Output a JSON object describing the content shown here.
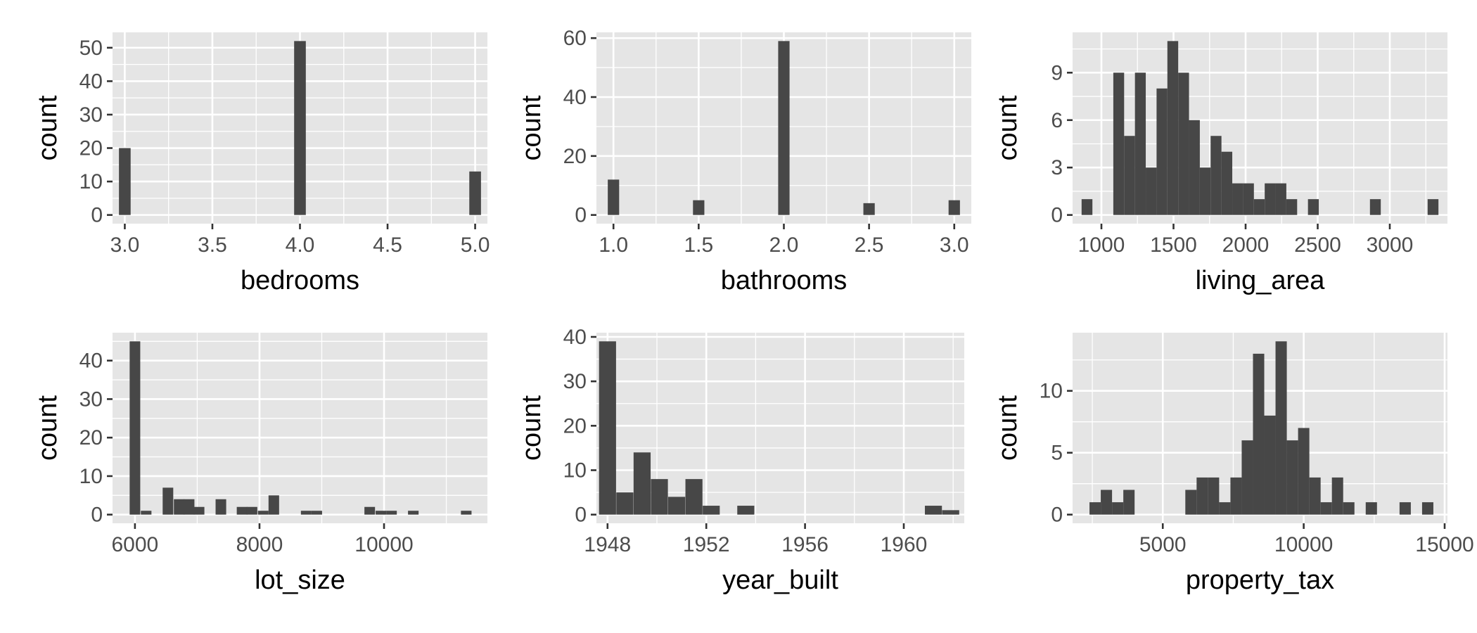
{
  "chart_data": [
    {
      "type": "bar",
      "title": "",
      "xlabel": "bedrooms",
      "ylabel": "count",
      "x": [
        3.0,
        4.0,
        5.0
      ],
      "values": [
        20,
        52,
        13
      ],
      "bar_width": 0.0667,
      "xlim": [
        2.93,
        5.07
      ],
      "ylim": [
        -2.6,
        54.6
      ],
      "xticks": [
        3.0,
        3.5,
        4.0,
        4.5,
        5.0
      ],
      "xtick_labels": [
        "3.0",
        "3.5",
        "4.0",
        "4.5",
        "5.0"
      ],
      "yticks": [
        0,
        10,
        20,
        30,
        40,
        50
      ],
      "ytick_labels": [
        "0",
        "10",
        "20",
        "30",
        "40",
        "50"
      ],
      "grid": true
    },
    {
      "type": "bar",
      "title": "",
      "xlabel": "bathrooms",
      "ylabel": "count",
      "x": [
        1.0,
        1.5,
        2.0,
        2.5,
        3.0
      ],
      "values": [
        12,
        5,
        59,
        4,
        5
      ],
      "bar_width": 0.0667,
      "xlim": [
        0.9,
        3.1
      ],
      "ylim": [
        -2.95,
        61.95
      ],
      "xticks": [
        1.0,
        1.5,
        2.0,
        2.5,
        3.0
      ],
      "xtick_labels": [
        "1.0",
        "1.5",
        "2.0",
        "2.5",
        "3.0"
      ],
      "yticks": [
        0,
        20,
        40,
        60
      ],
      "ytick_labels": [
        "0",
        "20",
        "40",
        "60"
      ],
      "grid": true
    },
    {
      "type": "bar",
      "title": "",
      "xlabel": "living_area",
      "ylabel": "count",
      "x": [
        900,
        1120,
        1195,
        1270,
        1345,
        1420,
        1495,
        1570,
        1645,
        1720,
        1795,
        1870,
        1945,
        2020,
        2095,
        2170,
        2245,
        2320,
        2470,
        2900,
        3300
      ],
      "values": [
        1,
        9,
        5,
        9,
        3,
        8,
        11,
        9,
        6,
        3,
        5,
        4,
        2,
        2,
        1,
        2,
        2,
        1,
        1,
        1,
        1
      ],
      "bar_width": 75,
      "xlim": [
        800,
        3400
      ],
      "ylim": [
        -0.55,
        11.55
      ],
      "xticks": [
        1000,
        1500,
        2000,
        2500,
        3000
      ],
      "xtick_labels": [
        "1000",
        "1500",
        "2000",
        "2500",
        "3000"
      ],
      "yticks": [
        0,
        3,
        6,
        9
      ],
      "ytick_labels": [
        "0",
        "3",
        "6",
        "9"
      ],
      "grid": true
    },
    {
      "type": "bar",
      "title": "",
      "xlabel": "lot_size",
      "ylabel": "count",
      "x": [
        6000,
        6180,
        6530,
        6710,
        6870,
        7030,
        7380,
        7720,
        7880,
        8060,
        8230,
        8750,
        8920,
        9770,
        9950,
        10120,
        10470,
        11320
      ],
      "values": [
        45,
        1,
        7,
        4,
        4,
        2,
        4,
        2,
        2,
        1,
        5,
        1,
        1,
        2,
        1,
        1,
        1,
        1
      ],
      "bar_width": 170,
      "xlim": [
        5640,
        11660
      ],
      "ylim": [
        -2.25,
        47.25
      ],
      "xticks": [
        6000,
        8000,
        10000
      ],
      "xtick_labels": [
        "6000",
        "8000",
        "10000"
      ],
      "yticks": [
        0,
        10,
        20,
        30,
        40
      ],
      "ytick_labels": [
        "0",
        "10",
        "20",
        "30",
        "40"
      ],
      "grid": true
    },
    {
      "type": "bar",
      "title": "",
      "xlabel": "year_built",
      "ylabel": "count",
      "x": [
        1948.0,
        1948.7,
        1949.4,
        1950.1,
        1950.8,
        1951.5,
        1952.2,
        1953.6,
        1954.3,
        1961.2,
        1961.9
      ],
      "values": [
        39,
        5,
        14,
        8,
        4,
        8,
        2,
        2,
        0,
        2,
        1
      ],
      "bar_width": 0.69,
      "xlim": [
        1947.55,
        1962.45
      ],
      "ylim": [
        -1.95,
        40.95
      ],
      "xticks": [
        1948,
        1952,
        1956,
        1960
      ],
      "xtick_labels": [
        "1948",
        "1952",
        "1956",
        "1960"
      ],
      "yticks": [
        0,
        10,
        20,
        30,
        40
      ],
      "ytick_labels": [
        "0",
        "10",
        "20",
        "30",
        "40"
      ],
      "grid": true
    },
    {
      "type": "bar",
      "title": "",
      "xlabel": "property_tax",
      "ylabel": "count",
      "x": [
        2600,
        3000,
        3400,
        3800,
        6000,
        6400,
        6800,
        7200,
        7600,
        8000,
        8400,
        8800,
        9200,
        9600,
        10000,
        10400,
        10800,
        11200,
        11600,
        12400,
        13600,
        14400
      ],
      "values": [
        1,
        2,
        1,
        2,
        2,
        3,
        3,
        1,
        3,
        6,
        13,
        8,
        14,
        6,
        7,
        3,
        1,
        3,
        1,
        1,
        1,
        1
      ],
      "bar_width": 400,
      "xlim": [
        1800,
        15100
      ],
      "ylim": [
        -0.7,
        14.7
      ],
      "xticks": [
        5000,
        10000,
        15000
      ],
      "xtick_labels": [
        "5000",
        "10000",
        "15000"
      ],
      "yticks": [
        0,
        5,
        10
      ],
      "ytick_labels": [
        "0",
        "5",
        "10"
      ],
      "grid": true
    }
  ]
}
